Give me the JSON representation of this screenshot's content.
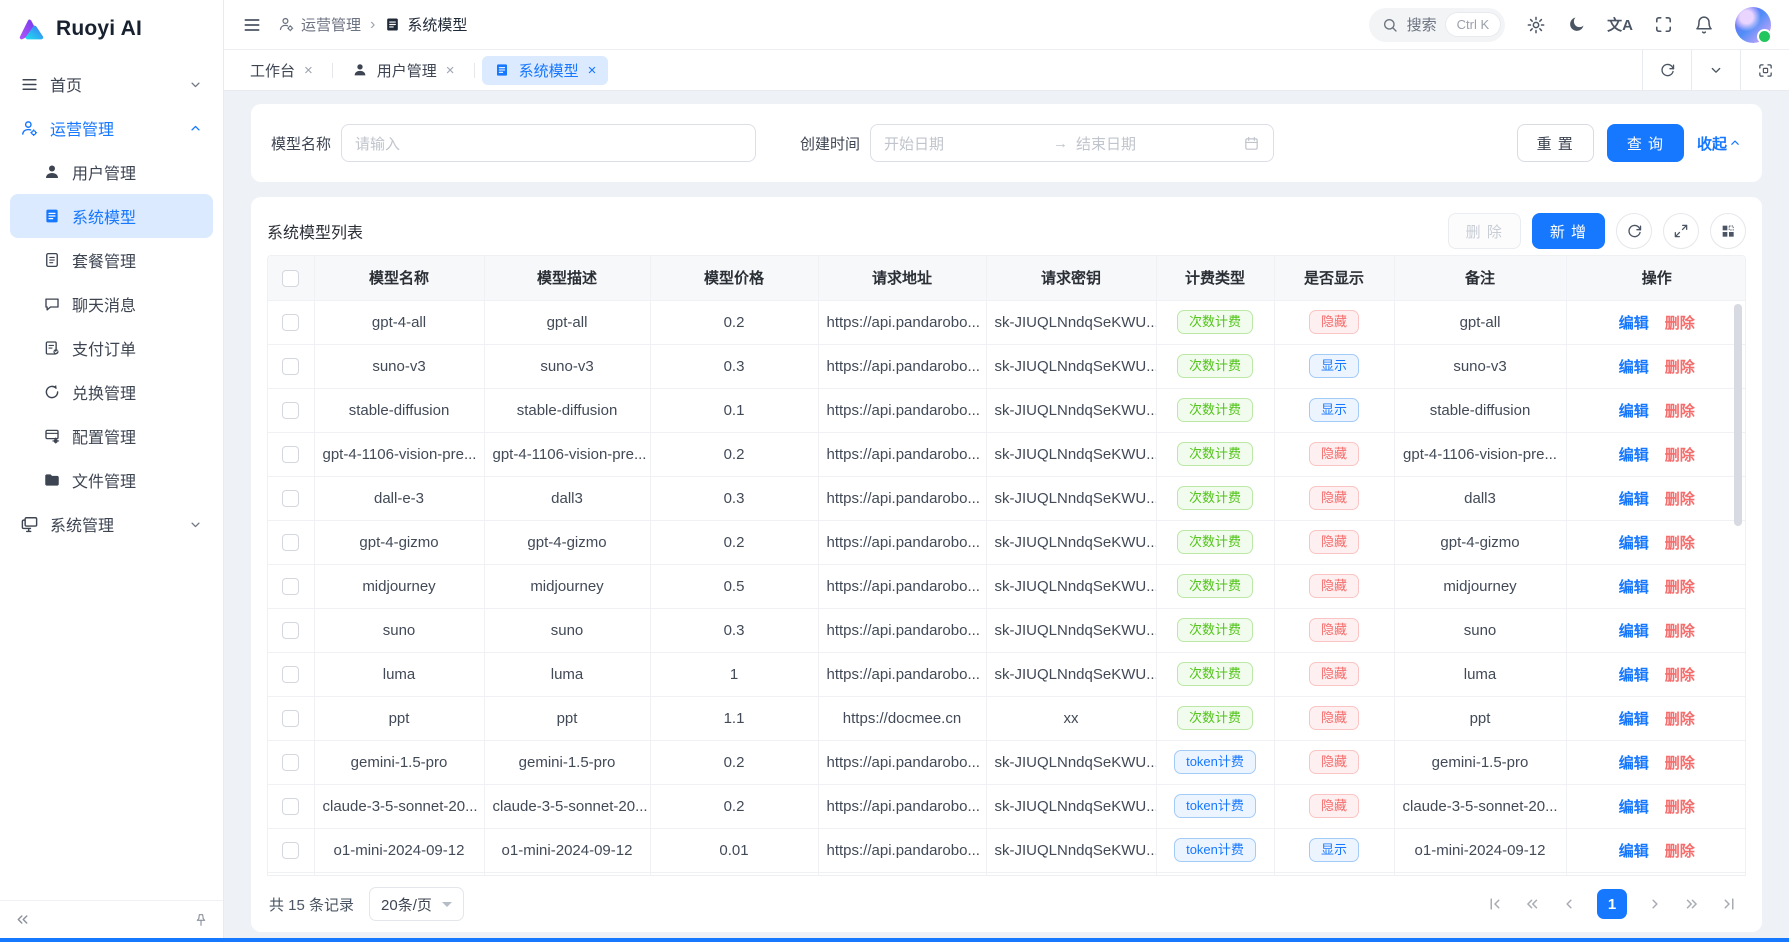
{
  "app": {
    "logo_text": "Ruoyi AI"
  },
  "colors": {
    "primary": "#1677ff",
    "active_highlight_bg": "#dbeafe",
    "badge_green_text": "#52c41a",
    "badge_red_text": "#f56c6c",
    "badge_blue_text": "#1677ff",
    "page_bg": "#eef1f6"
  },
  "icons": {
    "close_glyph": "×",
    "breadcrumb_sep": "›",
    "range_arrow": "→",
    "translate_glyph": "文A"
  },
  "sidebar": {
    "items": [
      {
        "label": "首页"
      },
      {
        "label": "运营管理"
      },
      {
        "label": "系统管理"
      }
    ],
    "subitems": [
      {
        "label": "用户管理"
      },
      {
        "label": "系统模型"
      },
      {
        "label": "套餐管理"
      },
      {
        "label": "聊天消息"
      },
      {
        "label": "支付订单"
      },
      {
        "label": "兑换管理"
      },
      {
        "label": "配置管理"
      },
      {
        "label": "文件管理"
      }
    ]
  },
  "topbar": {
    "breadcrumb": [
      {
        "label": "运营管理"
      },
      {
        "label": "系统模型"
      }
    ],
    "search_placeholder": "搜索",
    "search_shortcut": "Ctrl K"
  },
  "tabs": [
    {
      "label": "工作台"
    },
    {
      "label": "用户管理"
    },
    {
      "label": "系统模型"
    }
  ],
  "filter": {
    "model_name_label": "模型名称",
    "model_name_placeholder": "请输入",
    "create_time_label": "创建时间",
    "start_placeholder": "开始日期",
    "end_placeholder": "结束日期",
    "reset_label": "重 置",
    "search_label": "查 询",
    "collapse_label": "收起"
  },
  "table": {
    "title": "系统模型列表",
    "delete_label": "删 除",
    "add_label": "新 增",
    "edit_label": "编辑",
    "row_delete_label": "删除",
    "columns": [
      "模型名称",
      "模型描述",
      "模型价格",
      "请求地址",
      "请求密钥",
      "计费类型",
      "是否显示",
      "备注",
      "操作"
    ],
    "rows": [
      {
        "name": "gpt-4-all",
        "desc": "gpt-all",
        "price": "0.2",
        "url": "https://api.pandarobo...",
        "key": "sk-JIUQLNndqSeKWU...",
        "billing": "次数计费",
        "billing_color": "green",
        "visible": "隐藏",
        "visible_color": "red",
        "remark": "gpt-all"
      },
      {
        "name": "suno-v3",
        "desc": "suno-v3",
        "price": "0.3",
        "url": "https://api.pandarobo...",
        "key": "sk-JIUQLNndqSeKWU...",
        "billing": "次数计费",
        "billing_color": "green",
        "visible": "显示",
        "visible_color": "blue",
        "remark": "suno-v3"
      },
      {
        "name": "stable-diffusion",
        "desc": "stable-diffusion",
        "price": "0.1",
        "url": "https://api.pandarobo...",
        "key": "sk-JIUQLNndqSeKWU...",
        "billing": "次数计费",
        "billing_color": "green",
        "visible": "显示",
        "visible_color": "blue",
        "remark": "stable-diffusion"
      },
      {
        "name": "gpt-4-1106-vision-pre...",
        "desc": "gpt-4-1106-vision-pre...",
        "price": "0.2",
        "url": "https://api.pandarobo...",
        "key": "sk-JIUQLNndqSeKWU...",
        "billing": "次数计费",
        "billing_color": "green",
        "visible": "隐藏",
        "visible_color": "red",
        "remark": "gpt-4-1106-vision-pre..."
      },
      {
        "name": "dall-e-3",
        "desc": "dall3",
        "price": "0.3",
        "url": "https://api.pandarobo...",
        "key": "sk-JIUQLNndqSeKWU...",
        "billing": "次数计费",
        "billing_color": "green",
        "visible": "隐藏",
        "visible_color": "red",
        "remark": "dall3"
      },
      {
        "name": "gpt-4-gizmo",
        "desc": "gpt-4-gizmo",
        "price": "0.2",
        "url": "https://api.pandarobo...",
        "key": "sk-JIUQLNndqSeKWU...",
        "billing": "次数计费",
        "billing_color": "green",
        "visible": "隐藏",
        "visible_color": "red",
        "remark": "gpt-4-gizmo"
      },
      {
        "name": "midjourney",
        "desc": "midjourney",
        "price": "0.5",
        "url": "https://api.pandarobo...",
        "key": "sk-JIUQLNndqSeKWU...",
        "billing": "次数计费",
        "billing_color": "green",
        "visible": "隐藏",
        "visible_color": "red",
        "remark": "midjourney"
      },
      {
        "name": "suno",
        "desc": "suno",
        "price": "0.3",
        "url": "https://api.pandarobo...",
        "key": "sk-JIUQLNndqSeKWU...",
        "billing": "次数计费",
        "billing_color": "green",
        "visible": "隐藏",
        "visible_color": "red",
        "remark": "suno"
      },
      {
        "name": "luma",
        "desc": "luma",
        "price": "1",
        "url": "https://api.pandarobo...",
        "key": "sk-JIUQLNndqSeKWU...",
        "billing": "次数计费",
        "billing_color": "green",
        "visible": "隐藏",
        "visible_color": "red",
        "remark": "luma"
      },
      {
        "name": "ppt",
        "desc": "ppt",
        "price": "1.1",
        "url": "https://docmee.cn",
        "key": "xx",
        "billing": "次数计费",
        "billing_color": "green",
        "visible": "隐藏",
        "visible_color": "red",
        "remark": "ppt"
      },
      {
        "name": "gemini-1.5-pro",
        "desc": "gemini-1.5-pro",
        "price": "0.2",
        "url": "https://api.pandarobo...",
        "key": "sk-JIUQLNndqSeKWU...",
        "billing": "token计费",
        "billing_color": "blue",
        "visible": "隐藏",
        "visible_color": "red",
        "remark": "gemini-1.5-pro"
      },
      {
        "name": "claude-3-5-sonnet-20...",
        "desc": "claude-3-5-sonnet-20...",
        "price": "0.2",
        "url": "https://api.pandarobo...",
        "key": "sk-JIUQLNndqSeKWU...",
        "billing": "token计费",
        "billing_color": "blue",
        "visible": "隐藏",
        "visible_color": "red",
        "remark": "claude-3-5-sonnet-20..."
      },
      {
        "name": "o1-mini-2024-09-12",
        "desc": "o1-mini-2024-09-12",
        "price": "0.01",
        "url": "https://api.pandarobo...",
        "key": "sk-JIUQLNndqSeKWU...",
        "billing": "token计费",
        "billing_color": "blue",
        "visible": "显示",
        "visible_color": "blue",
        "remark": "o1-mini-2024-09-12"
      },
      {
        "name": "",
        "desc": "",
        "price": "",
        "url": "",
        "key": "",
        "billing": "",
        "billing_color": "",
        "visible": "",
        "visible_color": "",
        "remark": ""
      }
    ]
  },
  "pagination": {
    "total": "共 15 条记录",
    "page_size": "20条/页",
    "page": "1"
  }
}
